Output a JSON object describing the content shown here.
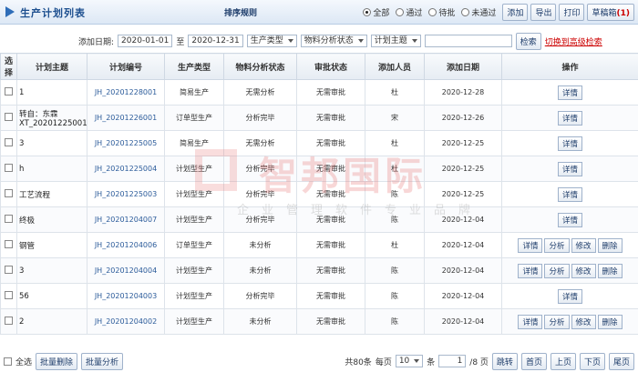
{
  "header": {
    "title": "生产计划列表",
    "sort": "排序规则",
    "filters": [
      "全部",
      "通过",
      "待批",
      "未通过"
    ],
    "buttons": [
      "添加",
      "导出",
      "打印"
    ],
    "drafts": "草稿箱",
    "drafts_count": "(1)"
  },
  "search": {
    "date_label": "添加日期:",
    "date_from": "2020-01-01",
    "to": "至",
    "date_to": "2020-12-31",
    "selects": [
      "生产类型",
      "物料分析状态",
      "计划主题"
    ],
    "button": "检索",
    "advanced": "切换到高级检索"
  },
  "table": {
    "columns": [
      "选择",
      "计划主题",
      "计划编号",
      "生产类型",
      "物料分析状态",
      "审批状态",
      "添加人员",
      "添加日期",
      "操作"
    ],
    "rows": [
      {
        "cells": [
          "1",
          "JH_20201228001",
          "简易生产",
          "无需分析",
          "无需审批",
          "杜",
          "2020-12-28"
        ],
        "actions": [
          "详情"
        ]
      },
      {
        "cells": [
          "转自：东霖XT_20201225001",
          "JH_20201226001",
          "订单型生产",
          "分析完毕",
          "无需审批",
          "宋",
          "2020-12-26"
        ],
        "actions": [
          "详情"
        ]
      },
      {
        "cells": [
          "3",
          "JH_20201225005",
          "简易生产",
          "无需分析",
          "无需审批",
          "杜",
          "2020-12-25"
        ],
        "actions": [
          "详情"
        ]
      },
      {
        "cells": [
          "h",
          "JH_20201225004",
          "计划型生产",
          "分析完毕",
          "无需审批",
          "杜",
          "2020-12-25"
        ],
        "actions": [
          "详情"
        ]
      },
      {
        "cells": [
          "工艺流程",
          "JH_20201225003",
          "计划型生产",
          "分析完毕",
          "无需审批",
          "陈",
          "2020-12-25"
        ],
        "actions": [
          "详情"
        ]
      },
      {
        "cells": [
          "终极",
          "JH_20201204007",
          "计划型生产",
          "分析完毕",
          "无需审批",
          "陈",
          "2020-12-04"
        ],
        "actions": [
          "详情"
        ]
      },
      {
        "cells": [
          "钢管",
          "JH_20201204006",
          "订单型生产",
          "未分析",
          "无需审批",
          "杜",
          "2020-12-04"
        ],
        "actions": [
          "详情",
          "分析",
          "修改",
          "删除"
        ]
      },
      {
        "cells": [
          "3",
          "JH_20201204004",
          "计划型生产",
          "未分析",
          "无需审批",
          "陈",
          "2020-12-04"
        ],
        "actions": [
          "详情",
          "分析",
          "修改",
          "删除"
        ]
      },
      {
        "cells": [
          "56",
          "JH_20201204003",
          "计划型生产",
          "分析完毕",
          "无需审批",
          "陈",
          "2020-12-04"
        ],
        "actions": [
          "详情"
        ]
      },
      {
        "cells": [
          "2",
          "JH_20201204002",
          "计划型生产",
          "未分析",
          "无需审批",
          "陈",
          "2020-12-04"
        ],
        "actions": [
          "详情",
          "分析",
          "修改",
          "删除"
        ]
      }
    ]
  },
  "footer": {
    "select_all": "全选",
    "batch": [
      "批量删除",
      "批量分析"
    ],
    "total": "共80条",
    "per_page": "每页",
    "page_size": "10",
    "unit": "条",
    "page": "1",
    "pages": "/8 页",
    "jump": "跳转",
    "nav": [
      "首页",
      "上页",
      "下页",
      "尾页"
    ]
  },
  "watermark": {
    "brand": "智邦国际",
    "slogan": "企业管理软件专业品牌"
  }
}
